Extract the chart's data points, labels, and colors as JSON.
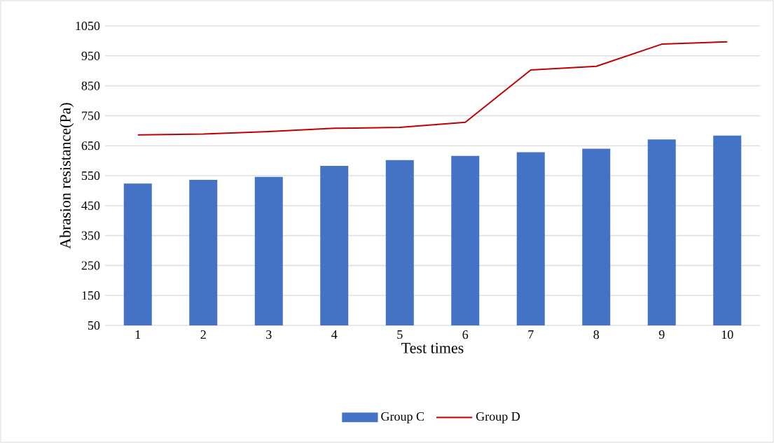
{
  "chart_data": {
    "type": "bar",
    "xlabel": "Test times",
    "ylabel": "Abrasion resistance(Pa)",
    "categories": [
      "1",
      "2",
      "3",
      "4",
      "5",
      "6",
      "7",
      "8",
      "9",
      "10"
    ],
    "series": [
      {
        "name": "Group C",
        "color": "#4472c4",
        "values": [
          524,
          536,
          546,
          583,
          602,
          616,
          628,
          640,
          671,
          684
        ]
      },
      {
        "name": "Group D",
        "type": "line",
        "color": "#c00000",
        "values": [
          686,
          689,
          697,
          708,
          711,
          728,
          903,
          915,
          989,
          997
        ]
      }
    ],
    "ylim": [
      50,
      1050
    ],
    "yticks": [
      50,
      150,
      250,
      350,
      450,
      550,
      650,
      750,
      850,
      950,
      1050
    ],
    "grid": "y",
    "legend": "bottom"
  }
}
